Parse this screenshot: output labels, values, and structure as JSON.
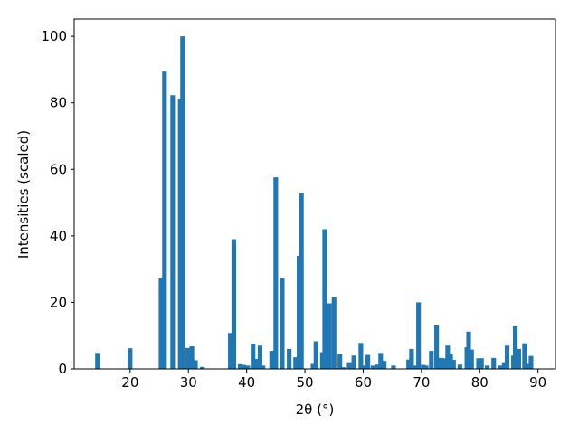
{
  "chart_data": {
    "type": "bar",
    "xlabel": "2θ (°)",
    "ylabel": "Intensities (scaled)",
    "color": "#1f77b4",
    "bar_width": 0.8,
    "x": [
      14.4,
      20.0,
      25.3,
      25.9,
      27.3,
      28.6,
      29.0,
      29.9,
      30.6,
      31.2,
      32.4,
      37.2,
      37.8,
      38.9,
      39.5,
      40.2,
      41.1,
      41.6,
      42.3,
      42.8,
      44.3,
      45.0,
      46.1,
      47.3,
      48.4,
      49.0,
      49.4,
      51.4,
      51.9,
      53.0,
      53.4,
      54.2,
      55.0,
      56.0,
      56.6,
      57.6,
      58.4,
      59.6,
      60.2,
      60.8,
      61.7,
      62.4,
      63.0,
      63.6,
      65.2,
      67.8,
      68.3,
      69.0,
      69.5,
      70.3,
      70.8,
      71.7,
      72.6,
      73.3,
      73.8,
      74.5,
      75.0,
      75.5,
      76.6,
      77.8,
      78.1,
      78.6,
      79.8,
      80.3,
      81.3,
      82.4,
      83.5,
      84.2,
      84.7,
      85.8,
      86.1,
      86.7,
      87.7,
      88.3,
      88.8
    ],
    "values": [
      4.8,
      6.2,
      27.3,
      89.4,
      82.3,
      81.2,
      100,
      6.3,
      6.8,
      2.6,
      0.6,
      10.8,
      39,
      1.4,
      1.2,
      1,
      7.6,
      3,
      7,
      1,
      5.4,
      57.6,
      27.3,
      6,
      3.5,
      34,
      52.8,
      1.5,
      8.3,
      5,
      42,
      19.7,
      21.5,
      4.5,
      0.5,
      2,
      4,
      7.8,
      1,
      4.2,
      1,
      1.3,
      4.8,
      2.4,
      1,
      2.8,
      6,
      1,
      20,
      1.2,
      1,
      5.4,
      13.1,
      3.3,
      3.2,
      7,
      4.6,
      2.7,
      1.3,
      6.5,
      11.2,
      5.8,
      3.2,
      3.2,
      1,
      3.3,
      1,
      2,
      7,
      4,
      12.8,
      6,
      7.7,
      1.5,
      3.9
    ],
    "xlim": [
      10.4,
      93
    ],
    "ylim": [
      0,
      105.2
    ],
    "xticks": [
      20,
      30,
      40,
      50,
      60,
      70,
      80,
      90
    ],
    "yticks": [
      0,
      20,
      40,
      60,
      80,
      100
    ]
  }
}
